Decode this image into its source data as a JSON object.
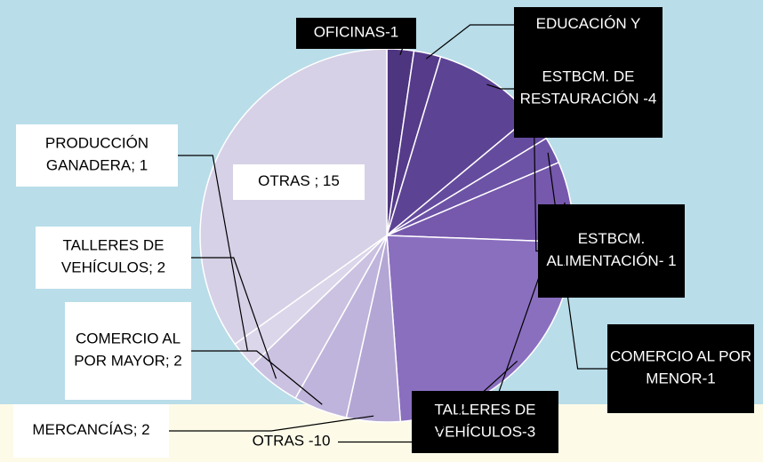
{
  "chart_data": {
    "type": "pie",
    "value_labels": [
      "OFICINAS-1",
      "EDUCACIÓN Y",
      "ESTBCM. DE RESTAURACIÓN -4",
      "ESTBCM. ALIMENTACIÓN- 1",
      "COMERCIO AL POR MENOR-1",
      "TALLERES DE VEHÍCULOS-3",
      "OTRAS -10",
      "MERCANCÍAS; 2",
      "COMERCIO AL POR MAYOR; 2",
      "TALLERES DE VEHÍCULOS; 2",
      "PRODUCCIÓN GANADERA; 1",
      "OTRAS ; 15"
    ],
    "values": [
      1,
      1,
      4,
      1,
      1,
      3,
      10,
      2,
      2,
      2,
      1,
      15
    ],
    "colors": [
      "#4e3580",
      "#553b8a",
      "#5d4394",
      "#654b9e",
      "#6d53a6",
      "#7658ad",
      "#8a6fbf",
      "#b3a6d4",
      "#bfb4db",
      "#cbc2e2",
      "#dcd6eb",
      "#d6d1e6"
    ]
  }
}
